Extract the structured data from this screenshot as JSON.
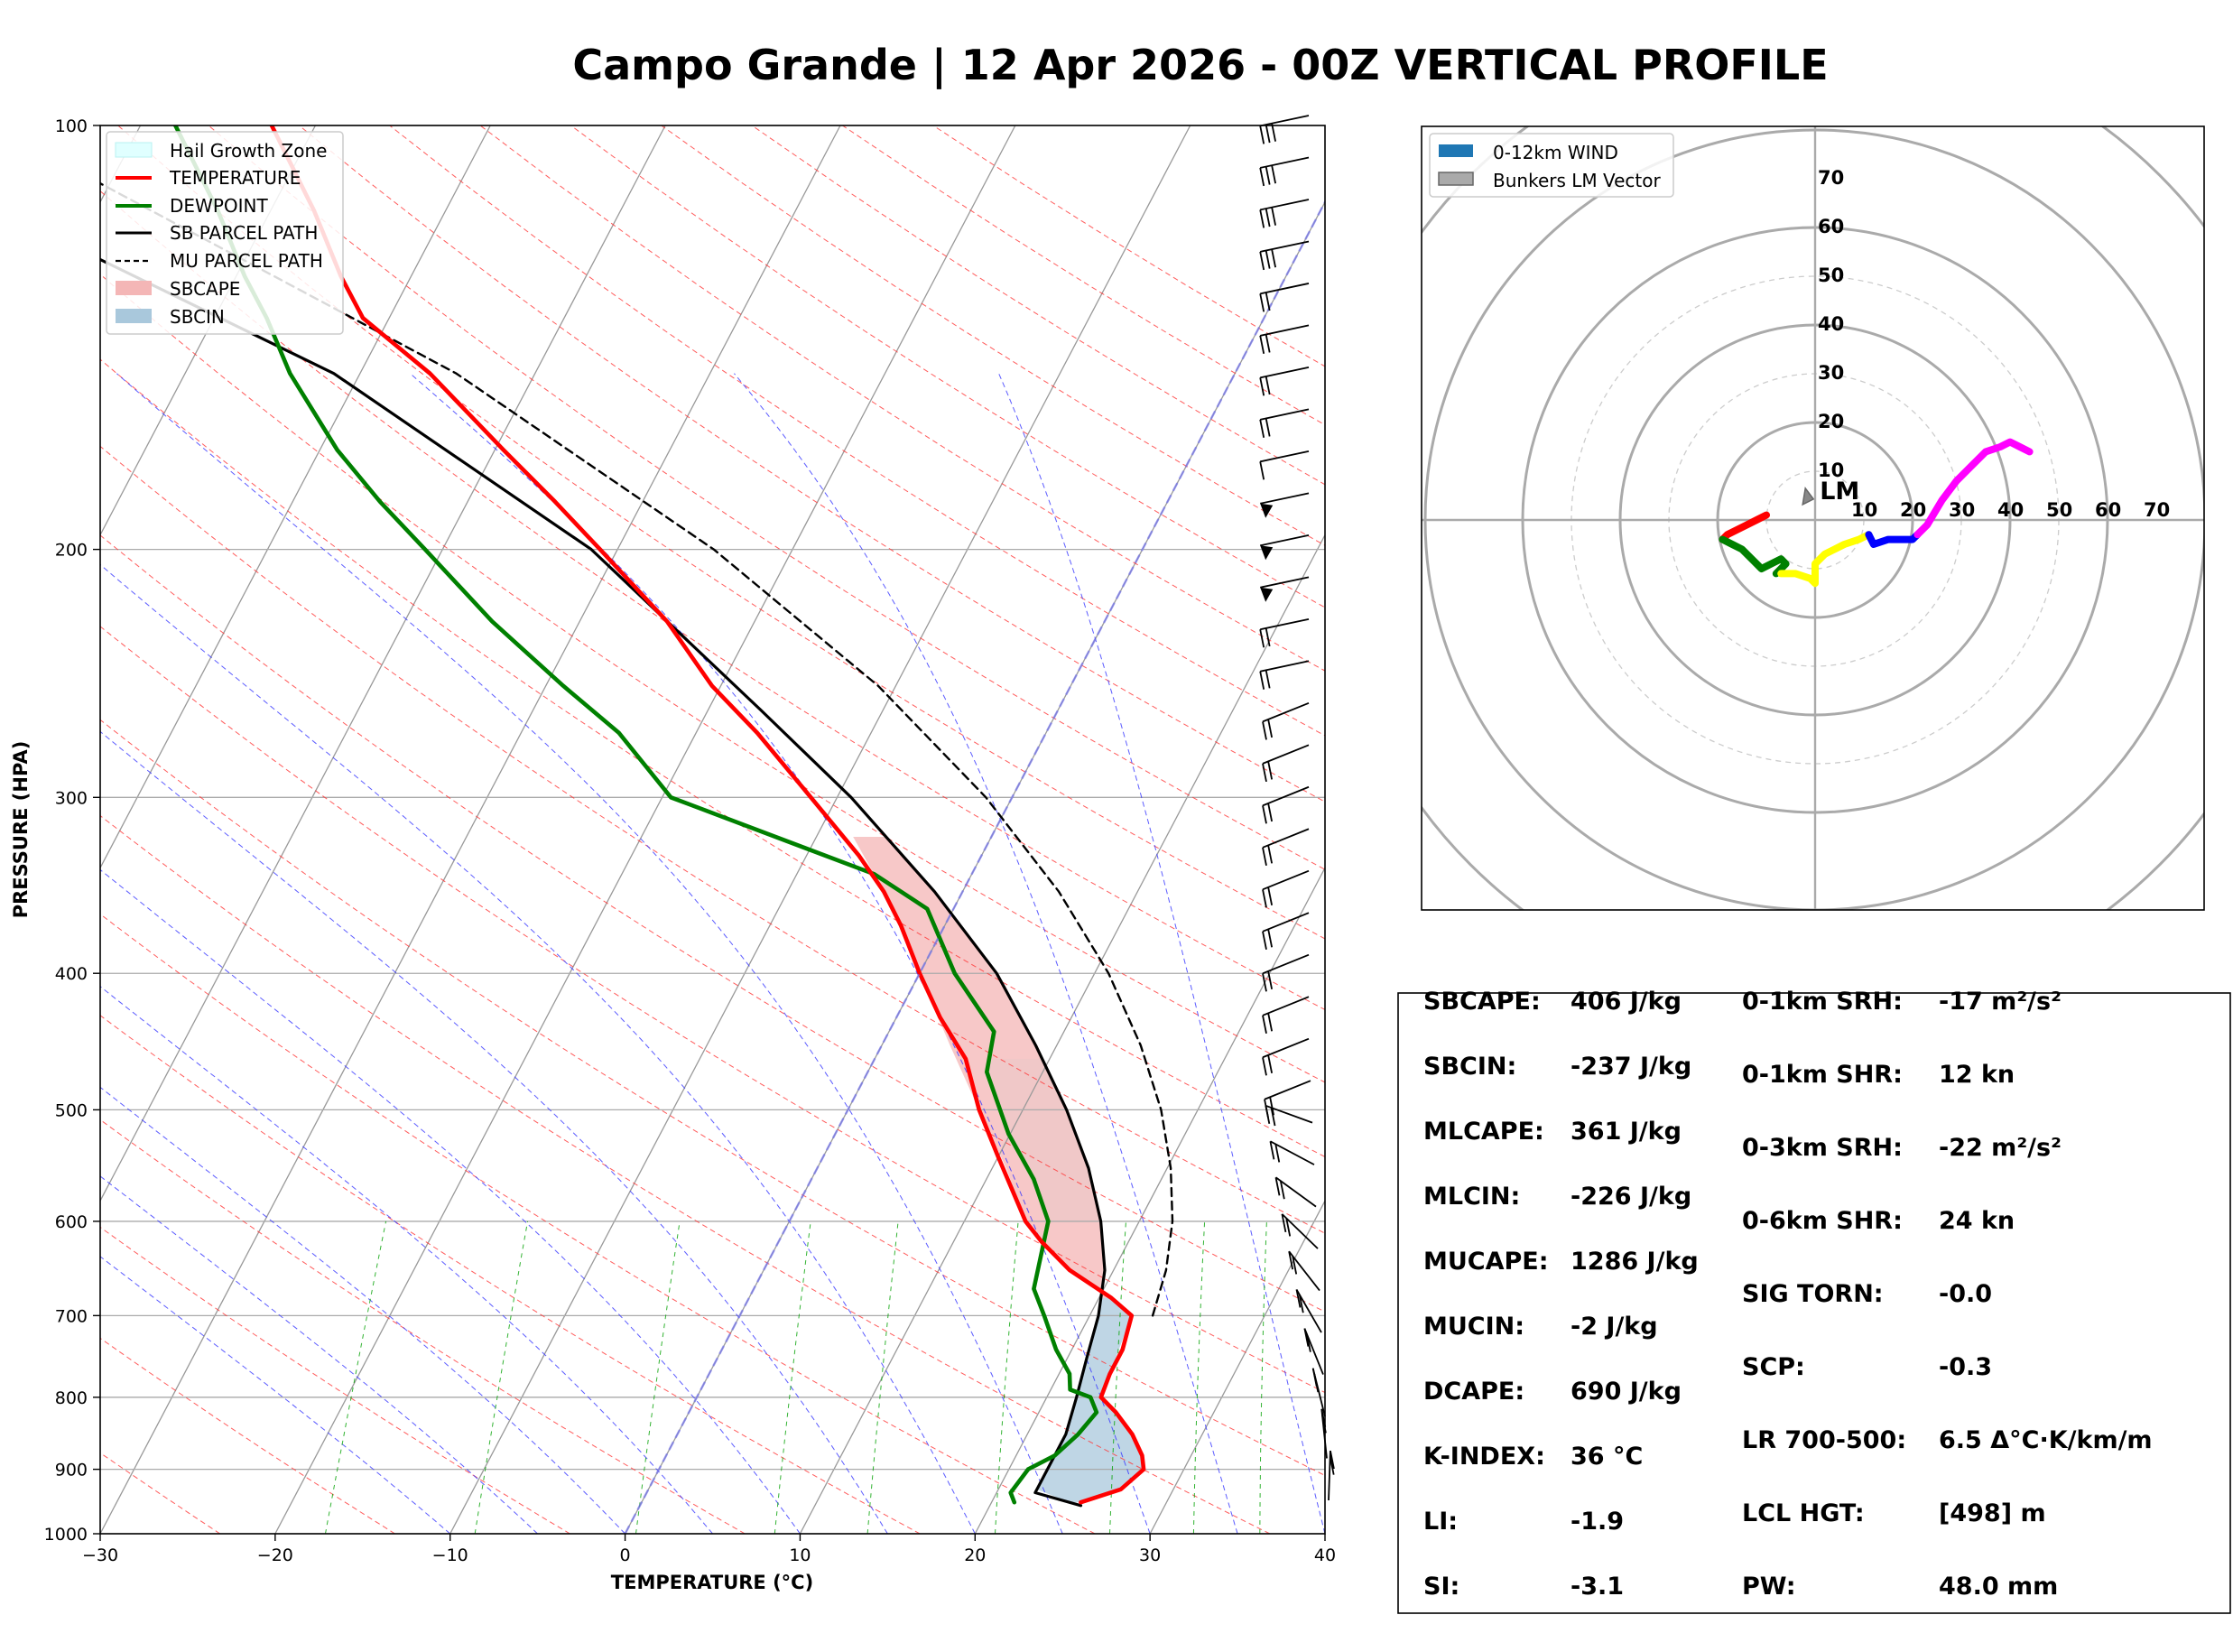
{
  "title": "Campo Grande | 12 Apr 2026 - 00Z VERTICAL PROFILE",
  "colors": {
    "temperature": "#ff0000",
    "dewpoint": "#008000",
    "parcel": "#000000",
    "sbcape": "#f4b6b6",
    "sbcin": "#a9c8dc",
    "hail": "#e0ffff",
    "dry_adiabat": "#ff3333",
    "moist_adiabat": "#3333ff",
    "mixing_ratio": "#00a000",
    "value_orange": "#ff4500",
    "value_lightblue": "#a8d3e0",
    "value_navy": "#000080",
    "value_blue": "#0000ff",
    "value_black": "#000000"
  },
  "chart_data": [
    {
      "type": "line",
      "subtype": "skew-t",
      "xlabel": "TEMPERATURE (°C)",
      "ylabel": "PRESSURE (HPA)",
      "xlim": [
        -30,
        40
      ],
      "ylim": [
        1000,
        100
      ],
      "y_scale": "log",
      "x_ticks": [
        "−30",
        "−20",
        "−10",
        "0",
        "10",
        "20",
        "30",
        "40"
      ],
      "y_ticks": [
        "1000",
        "900",
        "800",
        "700",
        "600",
        "500",
        "400",
        "300",
        "200",
        "100"
      ],
      "grid": true,
      "legend_position": "top-left",
      "legend": [
        "Hail Growth Zone",
        "TEMPERATURE",
        "DEWPOINT",
        "SB PARCEL PATH",
        "MU PARCEL PATH",
        "SBCAPE",
        "SBCIN"
      ],
      "series": [
        {
          "name": "TEMPERATURE",
          "points": [
            [
              950,
              25.1
            ],
            [
              930,
              27.0
            ],
            [
              900,
              27.7
            ],
            [
              880,
              27.2
            ],
            [
              850,
              26.0
            ],
            [
              820,
              24.4
            ],
            [
              800,
              23.1
            ],
            [
              770,
              22.9
            ],
            [
              740,
              22.9
            ],
            [
              700,
              22.4
            ],
            [
              680,
              20.7
            ],
            [
              650,
              17.5
            ],
            [
              620,
              15.0
            ],
            [
              600,
              13.5
            ],
            [
              570,
              11.8
            ],
            [
              540,
              10.0
            ],
            [
              500,
              7.5
            ],
            [
              460,
              5.2
            ],
            [
              430,
              2.5
            ],
            [
              400,
              0.0
            ],
            [
              370,
              -2.5
            ],
            [
              350,
              -4.5
            ],
            [
              330,
              -7.0
            ],
            [
              300,
              -11.5
            ],
            [
              270,
              -16.5
            ],
            [
              250,
              -20.5
            ],
            [
              225,
              -25.0
            ],
            [
              200,
              -31.0
            ],
            [
              185,
              -35.0
            ],
            [
              170,
              -39.5
            ],
            [
              150,
              -46.0
            ],
            [
              137,
              -51.5
            ],
            [
              128,
              -54.0
            ],
            [
              115,
              -57.5
            ],
            [
              100,
              -62.5
            ]
          ]
        },
        {
          "name": "DEWPOINT",
          "points": [
            [
              950,
              21.3
            ],
            [
              935,
              20.8
            ],
            [
              900,
              21.1
            ],
            [
              880,
              22.2
            ],
            [
              850,
              22.9
            ],
            [
              820,
              23.3
            ],
            [
              800,
              22.5
            ],
            [
              790,
              21.1
            ],
            [
              770,
              20.6
            ],
            [
              740,
              19.1
            ],
            [
              700,
              17.4
            ],
            [
              670,
              16.0
            ],
            [
              600,
              14.8
            ],
            [
              560,
              12.7
            ],
            [
              520,
              9.9
            ],
            [
              470,
              6.8
            ],
            [
              440,
              6.0
            ],
            [
              400,
              2.0
            ],
            [
              360,
              -1.5
            ],
            [
              340,
              -5.6
            ],
            [
              300,
              -19.5
            ],
            [
              270,
              -24.4
            ],
            [
              250,
              -29.0
            ],
            [
              225,
              -35.0
            ],
            [
              200,
              -41.0
            ],
            [
              185,
              -45.0
            ],
            [
              170,
              -49.0
            ],
            [
              150,
              -54.0
            ],
            [
              137,
              -57.0
            ],
            [
              128,
              -59.5
            ],
            [
              115,
              -63.0
            ],
            [
              100,
              -68.0
            ]
          ]
        },
        {
          "name": "SB PARCEL PATH",
          "points": [
            [
              955,
              25.2
            ],
            [
              935,
              22.2
            ],
            [
              900,
              22.2
            ],
            [
              850,
              22.2
            ],
            [
              800,
              21.7
            ],
            [
              750,
              21.1
            ],
            [
              700,
              20.5
            ],
            [
              650,
              19.5
            ],
            [
              600,
              17.8
            ],
            [
              550,
              15.5
            ],
            [
              500,
              12.5
            ],
            [
              450,
              8.8
            ],
            [
              400,
              4.4
            ],
            [
              350,
              -1.6
            ],
            [
              300,
              -9.2
            ],
            [
              260,
              -17.0
            ],
            [
              200,
              -31.5
            ],
            [
              150,
              -51.5
            ],
            [
              100,
              -88.0
            ]
          ]
        },
        {
          "name": "MU PARCEL PATH",
          "points": [
            [
              700,
              23.6
            ],
            [
              650,
              23.0
            ],
            [
              600,
              21.9
            ],
            [
              550,
              20.2
            ],
            [
              500,
              17.9
            ],
            [
              450,
              14.8
            ],
            [
              400,
              10.8
            ],
            [
              350,
              5.5
            ],
            [
              300,
              -1.5
            ],
            [
              250,
              -11.0
            ],
            [
              200,
              -24.5
            ],
            [
              150,
              -44.5
            ],
            [
              100,
              -78.5
            ]
          ]
        }
      ],
      "cape_shading": [
        [
          320,
          -7.9
        ],
        [
          350,
          -4.5
        ],
        [
          400,
          0.0
        ],
        [
          450,
          3.9
        ],
        [
          500,
          7.5
        ],
        [
          550,
          10.8
        ],
        [
          600,
          13.5
        ],
        [
          650,
          17.5
        ],
        [
          680,
          20.7
        ]
      ],
      "cin_shading": [
        [
          680,
          20.7
        ],
        [
          700,
          22.4
        ],
        [
          800,
          23.1
        ],
        [
          850,
          26.0
        ],
        [
          880,
          27.2
        ],
        [
          900,
          27.7
        ],
        [
          930,
          27.0
        ],
        [
          950,
          25.1
        ]
      ],
      "hail_zone": [
        [
          460,
          5.2
        ],
        [
          600,
          13.5
        ]
      ],
      "wind_barbs_count": 34
    },
    {
      "type": "line",
      "subtype": "hodograph",
      "legend_position": "top-left",
      "legend": [
        "0-12km WIND",
        "Bunkers LM Vector"
      ],
      "rings": [
        "10",
        "20",
        "30",
        "40",
        "50",
        "60",
        "70"
      ],
      "x_ticks": [
        "10",
        "20",
        "30",
        "40",
        "50",
        "60",
        "70"
      ],
      "lm_label": "LM",
      "lm_vector": [
        -2.0,
        6.5
      ],
      "segments": [
        {
          "color": "#ff0000",
          "points": [
            [
              -10,
              1
            ],
            [
              -12,
              0
            ],
            [
              -14,
              -1
            ],
            [
              -16,
              -2
            ],
            [
              -18,
              -3
            ],
            [
              -19,
              -4
            ]
          ]
        },
        {
          "color": "#008000",
          "points": [
            [
              -19,
              -4
            ],
            [
              -17,
              -5
            ],
            [
              -15,
              -6
            ],
            [
              -13,
              -8
            ],
            [
              -11,
              -10
            ],
            [
              -9,
              -9
            ],
            [
              -7,
              -8
            ],
            [
              -6,
              -9
            ],
            [
              -7,
              -10
            ],
            [
              -8,
              -11
            ]
          ]
        },
        {
          "color": "#ffff00",
          "points": [
            [
              -7,
              -11
            ],
            [
              -4,
              -11
            ],
            [
              -1,
              -12
            ],
            [
              0,
              -13
            ],
            [
              0,
              -10
            ],
            [
              0,
              -9
            ],
            [
              2,
              -7
            ],
            [
              4,
              -6
            ],
            [
              6,
              -5
            ],
            [
              9,
              -4
            ],
            [
              11,
              -3
            ]
          ]
        },
        {
          "color": "#0000ff",
          "points": [
            [
              11,
              -3
            ],
            [
              12,
              -5
            ],
            [
              15,
              -4
            ],
            [
              18,
              -4
            ],
            [
              20,
              -4
            ],
            [
              21,
              -3
            ]
          ]
        },
        {
          "color": "#ff00ff",
          "points": [
            [
              21,
              -3
            ],
            [
              23,
              -1
            ],
            [
              26,
              4
            ],
            [
              29,
              8
            ],
            [
              32,
              11
            ],
            [
              35,
              14
            ],
            [
              38,
              15
            ],
            [
              40,
              16
            ],
            [
              42,
              15
            ],
            [
              44,
              14
            ]
          ]
        }
      ]
    }
  ],
  "indices_left": [
    {
      "label": "SBCAPE:",
      "value": "406 J/kg",
      "color": "#ff4500"
    },
    {
      "label": "SBCIN:",
      "value": "-237 J/kg",
      "color": "#a8d3e0"
    },
    {
      "label": "MLCAPE:",
      "value": "361 J/kg",
      "color": "#ff4500"
    },
    {
      "label": "MLCIN:",
      "value": "-226 J/kg",
      "color": "#a8d3e0"
    },
    {
      "label": "MUCAPE:",
      "value": "1286 J/kg",
      "color": "#ff4500"
    },
    {
      "label": "MUCIN:",
      "value": "-2 J/kg",
      "color": "#a8d3e0"
    },
    {
      "label": "DCAPE:",
      "value": "690 J/kg",
      "color": "#ff4500"
    },
    {
      "label": "K-INDEX:",
      "value": "36 °C",
      "color": "#ff4500"
    },
    {
      "label": "LI:",
      "value": "-1.9",
      "color": "#000000"
    },
    {
      "label": "SI:",
      "value": "-3.1",
      "color": "#000000"
    }
  ],
  "indices_right": [
    {
      "label": "0-1km SRH:",
      "value": "-17 m²/s²",
      "color": "#000080"
    },
    {
      "label": "0-1km SHR:",
      "value": "12 kn",
      "color": "#0000ff"
    },
    {
      "label": "0-3km SRH:",
      "value": "-22 m²/s²",
      "color": "#000080"
    },
    {
      "label": "0-6km SHR:",
      "value": "24 kn",
      "color": "#0000ff"
    },
    {
      "label": "SIG TORN:",
      "value": "-0.0",
      "color": "#ff4500"
    },
    {
      "label": "SCP:",
      "value": "-0.3",
      "color": "#ff4500"
    },
    {
      "label": "LR 700-500:",
      "value": "6.5 Δ°C·K/km/m",
      "color": "#ff4500"
    },
    {
      "label": "LCL HGT:",
      "value": "[498] m",
      "color": "#ff4500"
    },
    {
      "label": "PW:",
      "value": "48.0 mm",
      "color": "#000080"
    }
  ]
}
